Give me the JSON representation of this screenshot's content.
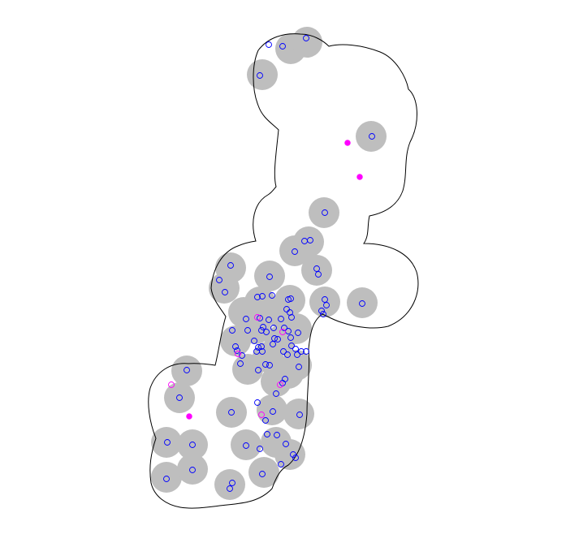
{
  "colors": {
    "background": "#ffffff",
    "outline": "#000000",
    "buffer_fill": "#bebebe",
    "point_blue": "#0000ff",
    "point_magenta": "#ff00ff"
  },
  "chart_data": {
    "type": "scatter",
    "title": "",
    "xlabel": "",
    "ylabel": "",
    "axes_shown": false,
    "grid": false,
    "legend": "none",
    "buffer_circles": [
      [
        358,
        60
      ],
      [
        378,
        52
      ],
      [
        323,
        92
      ],
      [
        457,
        168
      ],
      [
        399,
        262
      ],
      [
        380,
        298
      ],
      [
        363,
        309
      ],
      [
        284,
        330
      ],
      [
        332,
        340
      ],
      [
        390,
        333
      ],
      [
        276,
        355
      ],
      [
        357,
        370
      ],
      [
        400,
        372
      ],
      [
        446,
        373
      ],
      [
        320,
        372
      ],
      [
        345,
        385
      ],
      [
        300,
        385
      ],
      [
        315,
        405
      ],
      [
        365,
        405
      ],
      [
        290,
        420
      ],
      [
        345,
        420
      ],
      [
        330,
        440
      ],
      [
        305,
        455
      ],
      [
        365,
        450
      ],
      [
        340,
        470
      ],
      [
        355,
        460
      ],
      [
        230,
        457
      ],
      [
        221,
        490
      ],
      [
        285,
        508
      ],
      [
        335,
        505
      ],
      [
        368,
        510
      ],
      [
        205,
        545
      ],
      [
        237,
        548
      ],
      [
        303,
        548
      ],
      [
        340,
        545
      ],
      [
        357,
        560
      ],
      [
        325,
        582
      ],
      [
        205,
        588
      ],
      [
        237,
        578
      ],
      [
        283,
        597
      ]
    ],
    "blue_points": [
      [
        331,
        55
      ],
      [
        348,
        57
      ],
      [
        377,
        47
      ],
      [
        320,
        93
      ],
      [
        458,
        168
      ],
      [
        400,
        262
      ],
      [
        375,
        297
      ],
      [
        382,
        296
      ],
      [
        363,
        310
      ],
      [
        284,
        327
      ],
      [
        390,
        331
      ],
      [
        392,
        338
      ],
      [
        270,
        345
      ],
      [
        277,
        360
      ],
      [
        332,
        341
      ],
      [
        317,
        366
      ],
      [
        323,
        365
      ],
      [
        335,
        364
      ],
      [
        355,
        369
      ],
      [
        358,
        368
      ],
      [
        400,
        369
      ],
      [
        402,
        376
      ],
      [
        396,
        383
      ],
      [
        398,
        387
      ],
      [
        446,
        374
      ],
      [
        353,
        381
      ],
      [
        303,
        393
      ],
      [
        320,
        392
      ],
      [
        331,
        394
      ],
      [
        346,
        393
      ],
      [
        357,
        385
      ],
      [
        359,
        391
      ],
      [
        324,
        403
      ],
      [
        322,
        407
      ],
      [
        328,
        409
      ],
      [
        337,
        404
      ],
      [
        350,
        404
      ],
      [
        355,
        408
      ],
      [
        367,
        410
      ],
      [
        286,
        407
      ],
      [
        305,
        407
      ],
      [
        338,
        417
      ],
      [
        342,
        418
      ],
      [
        313,
        420
      ],
      [
        336,
        424
      ],
      [
        358,
        416
      ],
      [
        359,
        426
      ],
      [
        349,
        433
      ],
      [
        364,
        430
      ],
      [
        366,
        437
      ],
      [
        371,
        433
      ],
      [
        377,
        433
      ],
      [
        290,
        427
      ],
      [
        292,
        432
      ],
      [
        298,
        438
      ],
      [
        318,
        428
      ],
      [
        322,
        427
      ],
      [
        316,
        433
      ],
      [
        323,
        433
      ],
      [
        296,
        448
      ],
      [
        327,
        449
      ],
      [
        332,
        450
      ],
      [
        354,
        437
      ],
      [
        368,
        452
      ],
      [
        318,
        456
      ],
      [
        351,
        467
      ],
      [
        348,
        472
      ],
      [
        230,
        456
      ],
      [
        221,
        490
      ],
      [
        340,
        485
      ],
      [
        317,
        496
      ],
      [
        285,
        508
      ],
      [
        336,
        507
      ],
      [
        327,
        518
      ],
      [
        369,
        511
      ],
      [
        206,
        545
      ],
      [
        237,
        548
      ],
      [
        303,
        549
      ],
      [
        329,
        535
      ],
      [
        341,
        536
      ],
      [
        352,
        547
      ],
      [
        320,
        553
      ],
      [
        361,
        560
      ],
      [
        364,
        564
      ],
      [
        346,
        572
      ],
      [
        237,
        579
      ],
      [
        205,
        590
      ],
      [
        323,
        584
      ],
      [
        286,
        595
      ],
      [
        283,
        602
      ]
    ],
    "magenta_open_points": [
      [
        211,
        474
      ],
      [
        317,
        391
      ],
      [
        348,
        409
      ],
      [
        293,
        436
      ],
      [
        345,
        474
      ],
      [
        322,
        511
      ]
    ],
    "magenta_filled_points": [
      [
        428,
        176
      ],
      [
        443,
        218
      ],
      [
        233,
        513
      ]
    ]
  }
}
